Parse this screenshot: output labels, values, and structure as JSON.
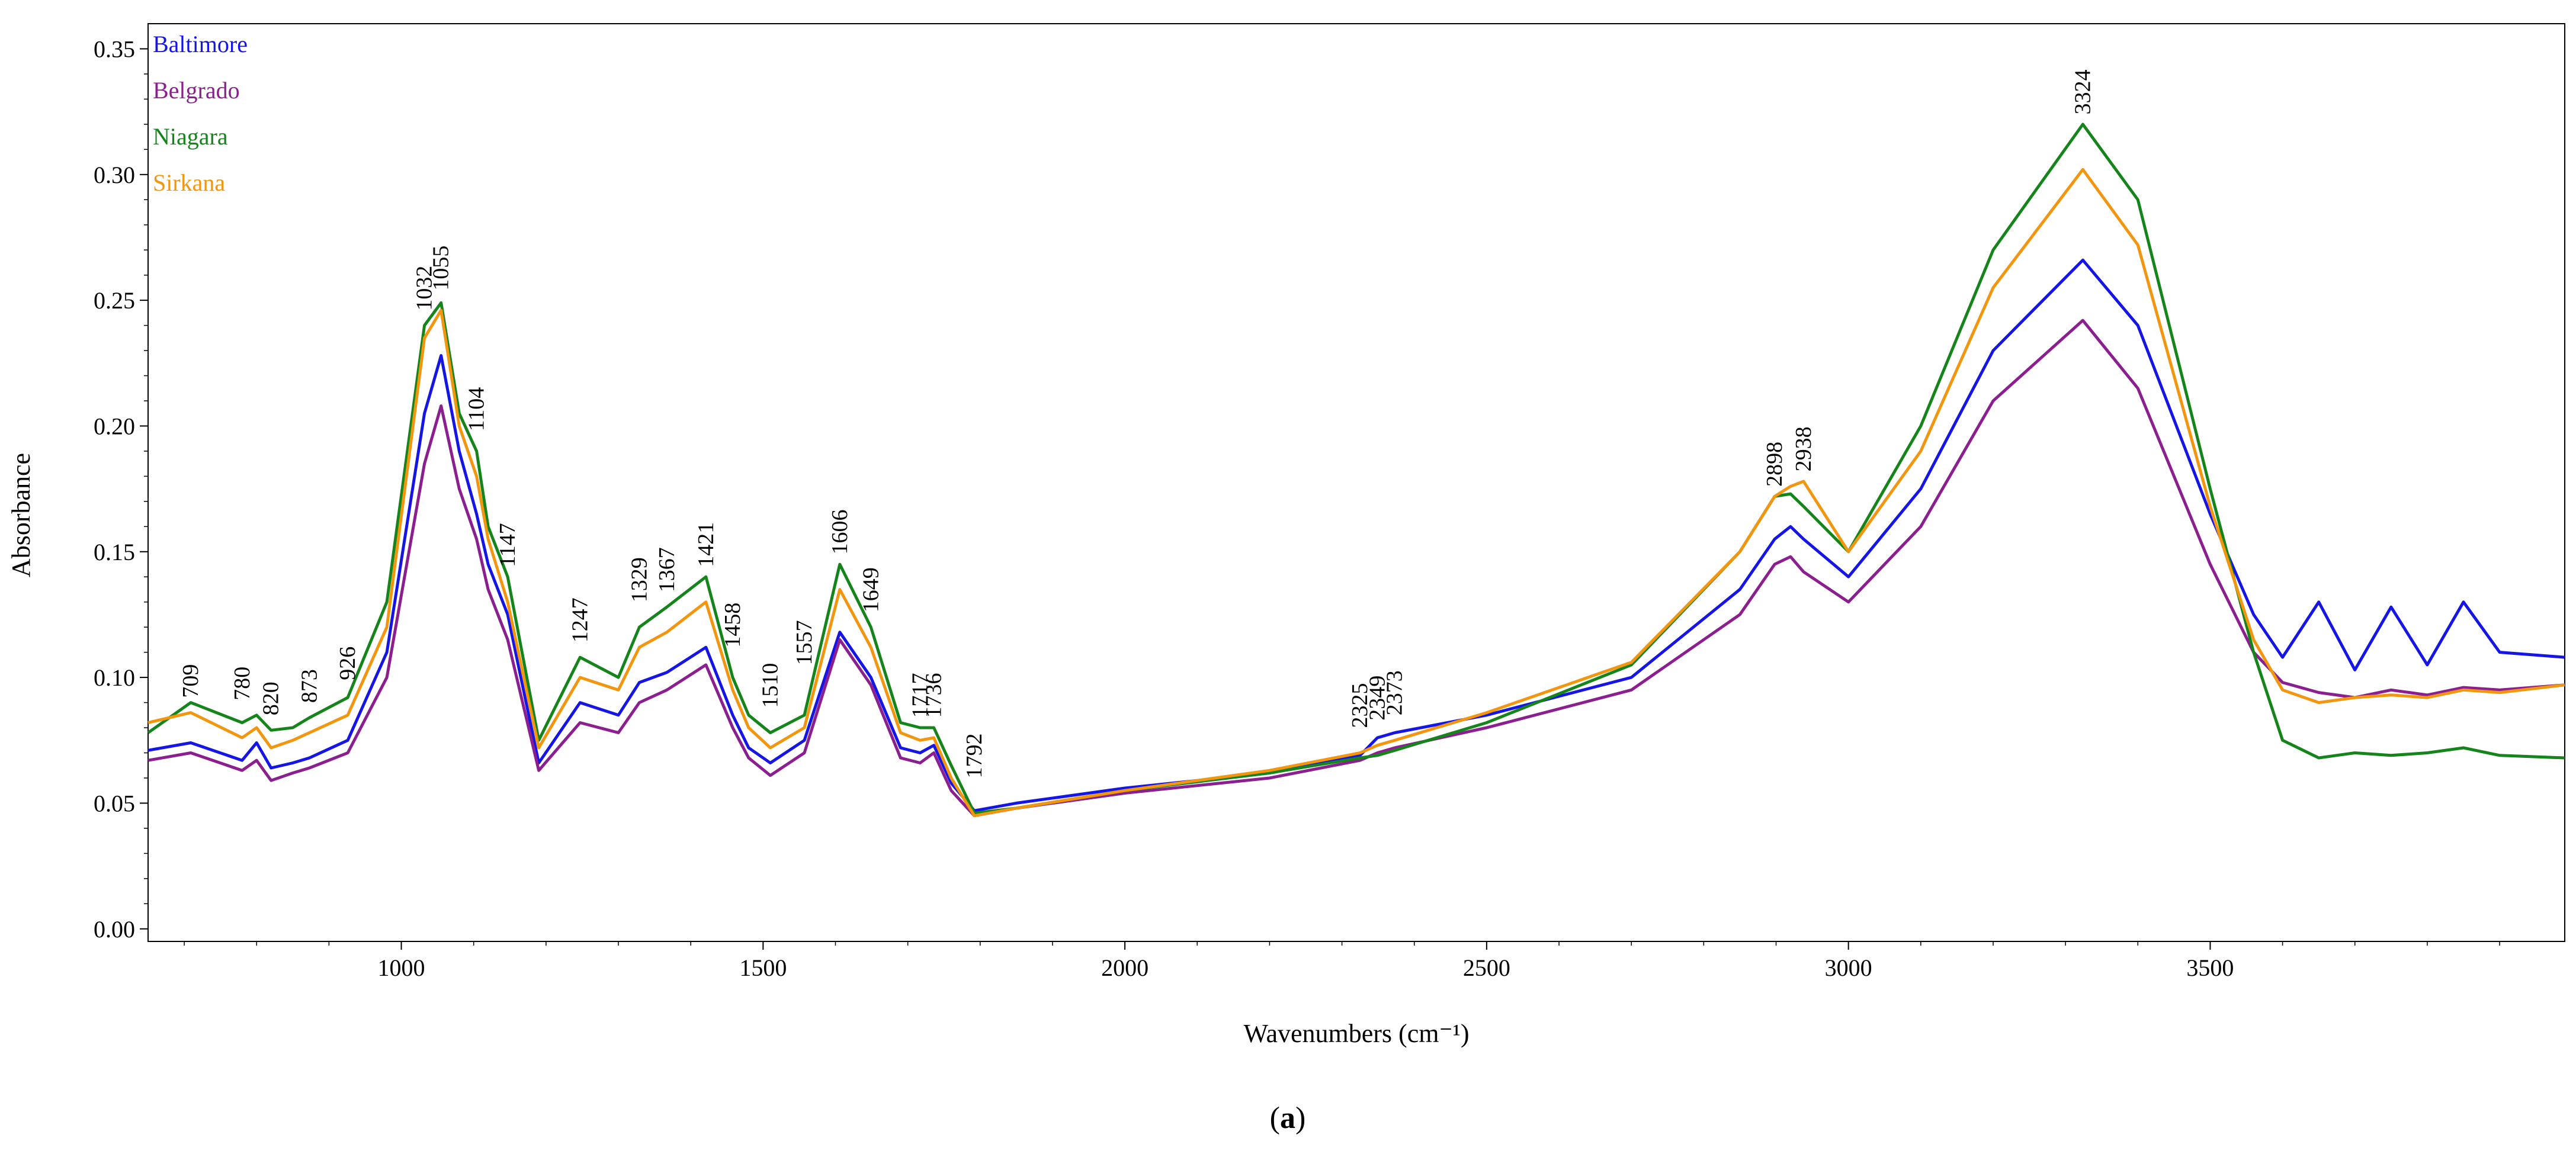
{
  "chart_data": {
    "type": "line",
    "title": "",
    "xlabel": "Wavenumbers (cm⁻¹)",
    "ylabel": "Absorbance",
    "caption": {
      "open": "(",
      "letter": "a",
      "close": ")"
    },
    "xlim": [
      650,
      3990
    ],
    "ylim": [
      -0.005,
      0.36
    ],
    "xticks": [
      1000,
      1500,
      2000,
      2500,
      3000,
      3500
    ],
    "yticks": [
      0.0,
      0.05,
      0.1,
      0.15,
      0.2,
      0.25,
      0.3,
      0.35
    ],
    "ytick_labels": [
      "0.00",
      "0.05",
      "0.10",
      "0.15",
      "0.20",
      "0.25",
      "0.30",
      "0.35"
    ],
    "x": [
      650,
      709,
      780,
      800,
      820,
      850,
      873,
      926,
      980,
      1032,
      1055,
      1080,
      1104,
      1120,
      1147,
      1190,
      1247,
      1300,
      1329,
      1367,
      1421,
      1458,
      1480,
      1510,
      1557,
      1606,
      1649,
      1690,
      1717,
      1736,
      1760,
      1792,
      1850,
      2000,
      2200,
      2325,
      2349,
      2373,
      2500,
      2700,
      2850,
      2898,
      2920,
      2938,
      3000,
      3100,
      3200,
      3324,
      3400,
      3500,
      3560,
      3600,
      3650,
      3700,
      3750,
      3800,
      3850,
      3900,
      3990
    ],
    "series": [
      {
        "name": "Baltimore",
        "color": "#1515e6",
        "values": [
          0.071,
          0.074,
          0.067,
          0.074,
          0.064,
          0.066,
          0.068,
          0.075,
          0.11,
          0.205,
          0.228,
          0.19,
          0.165,
          0.145,
          0.125,
          0.066,
          0.09,
          0.085,
          0.098,
          0.102,
          0.112,
          0.085,
          0.072,
          0.066,
          0.075,
          0.118,
          0.1,
          0.072,
          0.07,
          0.073,
          0.058,
          0.047,
          0.05,
          0.056,
          0.062,
          0.069,
          0.076,
          0.078,
          0.085,
          0.1,
          0.135,
          0.155,
          0.16,
          0.155,
          0.14,
          0.175,
          0.23,
          0.266,
          0.24,
          0.165,
          0.125,
          0.108,
          0.13,
          0.103,
          0.128,
          0.105,
          0.13,
          0.11,
          0.108
        ]
      },
      {
        "name": "Belgrado",
        "color": "#8b1f8f",
        "values": [
          0.067,
          0.07,
          0.063,
          0.067,
          0.059,
          0.062,
          0.064,
          0.07,
          0.1,
          0.185,
          0.208,
          0.175,
          0.155,
          0.135,
          0.115,
          0.063,
          0.082,
          0.078,
          0.09,
          0.095,
          0.105,
          0.08,
          0.068,
          0.061,
          0.07,
          0.115,
          0.097,
          0.068,
          0.066,
          0.07,
          0.055,
          0.045,
          0.048,
          0.054,
          0.06,
          0.067,
          0.07,
          0.072,
          0.08,
          0.095,
          0.125,
          0.145,
          0.148,
          0.142,
          0.13,
          0.16,
          0.21,
          0.242,
          0.215,
          0.145,
          0.11,
          0.098,
          0.094,
          0.092,
          0.095,
          0.093,
          0.096,
          0.095,
          0.097
        ]
      },
      {
        "name": "Niagara",
        "color": "#15851b",
        "values": [
          0.078,
          0.09,
          0.082,
          0.085,
          0.079,
          0.08,
          0.084,
          0.092,
          0.13,
          0.24,
          0.249,
          0.205,
          0.19,
          0.16,
          0.14,
          0.075,
          0.108,
          0.1,
          0.12,
          0.128,
          0.14,
          0.1,
          0.085,
          0.078,
          0.085,
          0.145,
          0.12,
          0.082,
          0.08,
          0.08,
          0.065,
          0.046,
          0.048,
          0.055,
          0.062,
          0.068,
          0.069,
          0.071,
          0.082,
          0.105,
          0.15,
          0.172,
          0.173,
          0.168,
          0.15,
          0.2,
          0.27,
          0.32,
          0.29,
          0.175,
          0.11,
          0.075,
          0.068,
          0.07,
          0.069,
          0.07,
          0.072,
          0.069,
          0.068
        ]
      },
      {
        "name": "Sirkana",
        "color": "#f2960f",
        "values": [
          0.082,
          0.086,
          0.076,
          0.08,
          0.072,
          0.075,
          0.078,
          0.085,
          0.12,
          0.235,
          0.246,
          0.2,
          0.18,
          0.155,
          0.13,
          0.072,
          0.1,
          0.095,
          0.112,
          0.118,
          0.13,
          0.095,
          0.08,
          0.072,
          0.08,
          0.135,
          0.112,
          0.078,
          0.075,
          0.076,
          0.06,
          0.045,
          0.048,
          0.055,
          0.063,
          0.07,
          0.073,
          0.075,
          0.086,
          0.106,
          0.15,
          0.172,
          0.176,
          0.178,
          0.15,
          0.19,
          0.255,
          0.302,
          0.272,
          0.168,
          0.115,
          0.095,
          0.09,
          0.092,
          0.093,
          0.092,
          0.095,
          0.094,
          0.097
        ]
      }
    ],
    "peak_labels": [
      {
        "wavenumber": 709,
        "absorbance": 0.09,
        "label": "709"
      },
      {
        "wavenumber": 780,
        "absorbance": 0.089,
        "label": "780"
      },
      {
        "wavenumber": 820,
        "absorbance": 0.083,
        "label": "820"
      },
      {
        "wavenumber": 873,
        "absorbance": 0.088,
        "label": "873"
      },
      {
        "wavenumber": 926,
        "absorbance": 0.097,
        "label": "926"
      },
      {
        "wavenumber": 1032,
        "absorbance": 0.244,
        "label": "1032"
      },
      {
        "wavenumber": 1055,
        "absorbance": 0.252,
        "label": "1055"
      },
      {
        "wavenumber": 1104,
        "absorbance": 0.196,
        "label": "1104"
      },
      {
        "wavenumber": 1147,
        "absorbance": 0.142,
        "label": "1147"
      },
      {
        "wavenumber": 1247,
        "absorbance": 0.112,
        "label": "1247"
      },
      {
        "wavenumber": 1329,
        "absorbance": 0.128,
        "label": "1329"
      },
      {
        "wavenumber": 1367,
        "absorbance": 0.132,
        "label": "1367"
      },
      {
        "wavenumber": 1421,
        "absorbance": 0.142,
        "label": "1421"
      },
      {
        "wavenumber": 1458,
        "absorbance": 0.11,
        "label": "1458"
      },
      {
        "wavenumber": 1510,
        "absorbance": 0.086,
        "label": "1510"
      },
      {
        "wavenumber": 1557,
        "absorbance": 0.103,
        "label": "1557"
      },
      {
        "wavenumber": 1606,
        "absorbance": 0.147,
        "label": "1606"
      },
      {
        "wavenumber": 1649,
        "absorbance": 0.124,
        "label": "1649"
      },
      {
        "wavenumber": 1717,
        "absorbance": 0.082,
        "label": "1717"
      },
      {
        "wavenumber": 1736,
        "absorbance": 0.082,
        "label": "1736"
      },
      {
        "wavenumber": 1792,
        "absorbance": 0.058,
        "label": "1792"
      },
      {
        "wavenumber": 2325,
        "absorbance": 0.078,
        "label": "2325"
      },
      {
        "wavenumber": 2349,
        "absorbance": 0.081,
        "label": "2349"
      },
      {
        "wavenumber": 2373,
        "absorbance": 0.083,
        "label": "2373"
      },
      {
        "wavenumber": 2898,
        "absorbance": 0.174,
        "label": "2898"
      },
      {
        "wavenumber": 2938,
        "absorbance": 0.18,
        "label": "2938"
      },
      {
        "wavenumber": 3324,
        "absorbance": 0.322,
        "label": "3324"
      }
    ],
    "legend": {
      "placement": "top-left"
    },
    "grid": false
  }
}
